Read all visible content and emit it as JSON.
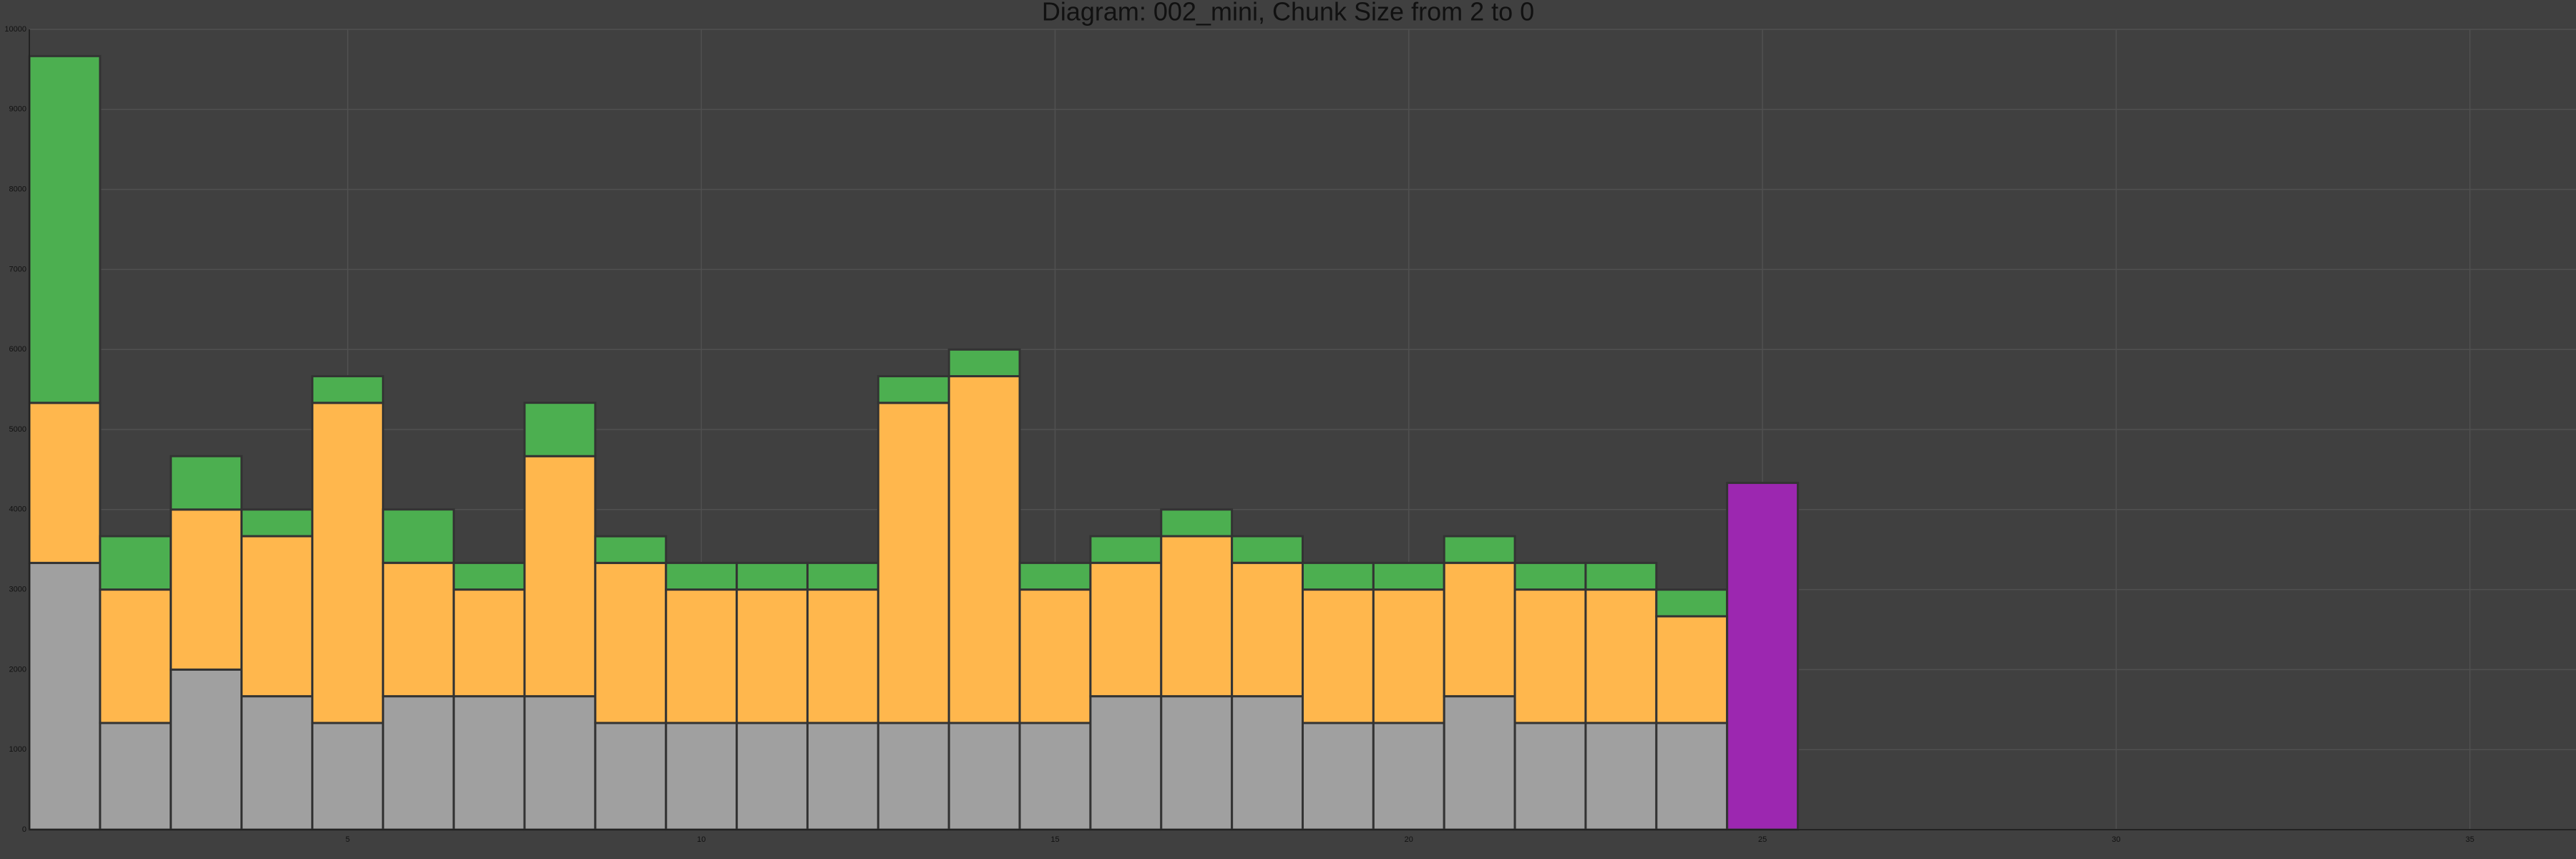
{
  "chart_data": {
    "type": "bar",
    "stacked": true,
    "title": "Diagram: 002_mini, Chunk Size from 2 to 0",
    "x": [
      1,
      2,
      3,
      4,
      5,
      6,
      7,
      8,
      9,
      10,
      11,
      12,
      13,
      14,
      15,
      16,
      17,
      18,
      19,
      20,
      21,
      22,
      23,
      24,
      25
    ],
    "series": [
      {
        "color": "#a0a0a0",
        "values": [
          3333,
          1333,
          2000,
          1667,
          1333,
          1667,
          1667,
          1667,
          1333,
          1333,
          1333,
          1333,
          1333,
          1333,
          1333,
          1667,
          1667,
          1667,
          1333,
          1333,
          1667,
          1333,
          1333,
          1333,
          null
        ]
      },
      {
        "color": "#ffb74d",
        "values": [
          2000,
          1667,
          2000,
          2000,
          4000,
          1667,
          1333,
          3000,
          2000,
          1667,
          1667,
          1667,
          4000,
          4333,
          1667,
          1667,
          2000,
          1667,
          1667,
          1667,
          1667,
          1667,
          1667,
          1333,
          null
        ]
      },
      {
        "color": "#4caf50",
        "values": [
          4333,
          667,
          667,
          333,
          333,
          667,
          333,
          667,
          333,
          333,
          333,
          333,
          333,
          333,
          333,
          333,
          333,
          333,
          333,
          333,
          333,
          333,
          333,
          333,
          null
        ]
      },
      {
        "color": "#9c27b0",
        "values": [
          null,
          null,
          null,
          null,
          null,
          null,
          null,
          null,
          null,
          null,
          null,
          null,
          null,
          null,
          null,
          null,
          null,
          null,
          null,
          null,
          null,
          null,
          null,
          null,
          4333
        ]
      }
    ],
    "xlim": [
      0.5,
      36.5
    ],
    "xticks": [
      5,
      10,
      15,
      20,
      25,
      30,
      35
    ],
    "ylim": [
      0,
      10000
    ],
    "yticks": [
      0,
      1000,
      2000,
      3000,
      4000,
      5000,
      6000,
      7000,
      8000,
      9000,
      10000
    ],
    "grid": true
  }
}
